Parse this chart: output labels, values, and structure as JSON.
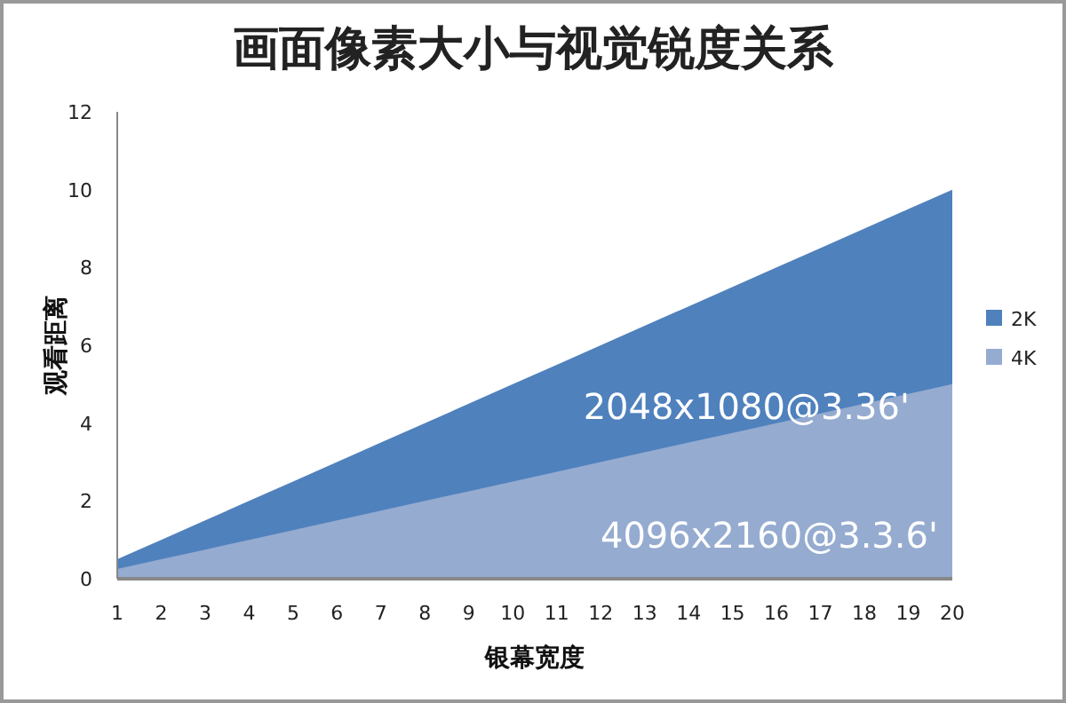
{
  "chart_data": {
    "type": "area",
    "title": "画面像素大小与视觉锐度关系",
    "xlabel": "银幕宽度",
    "ylabel": "观看距离",
    "categories": [
      "1",
      "2",
      "3",
      "4",
      "5",
      "6",
      "7",
      "8",
      "9",
      "10",
      "11",
      "12",
      "13",
      "14",
      "15",
      "16",
      "17",
      "18",
      "19",
      "20"
    ],
    "series": [
      {
        "name": "2K",
        "color": "#4f81bd",
        "values": [
          0.5,
          1,
          1.5,
          2,
          2.5,
          3,
          3.5,
          4,
          4.5,
          5,
          5.5,
          6,
          6.5,
          7,
          7.5,
          8,
          8.5,
          9,
          9.5,
          10
        ]
      },
      {
        "name": "4K",
        "color": "#95abd0",
        "values": [
          0.25,
          0.5,
          0.75,
          1,
          1.25,
          1.5,
          1.75,
          2,
          2.25,
          2.5,
          2.75,
          3,
          3.25,
          3.5,
          3.75,
          4,
          4.25,
          4.5,
          4.75,
          5
        ]
      }
    ],
    "ylim": [
      0,
      12
    ],
    "yticks": [
      0,
      2,
      4,
      6,
      8,
      10,
      12
    ],
    "grid": false,
    "legend": "right",
    "annotations": [
      "2048x1080@3.36'",
      "4096x2160@3.3.6'"
    ]
  }
}
